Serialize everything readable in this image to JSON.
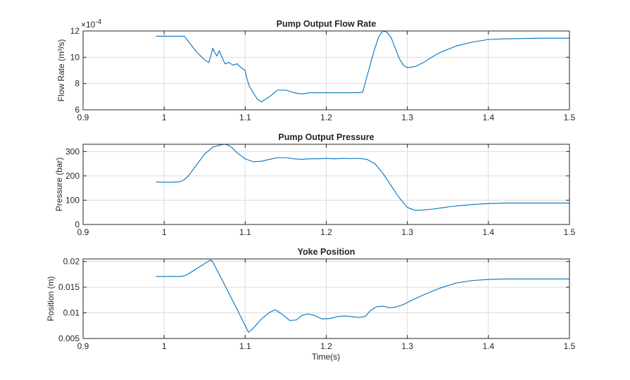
{
  "figure": {
    "xlabel": "Time(s)"
  },
  "chart_data": [
    {
      "type": "line",
      "title": "Pump Output Flow Rate",
      "ylabel": "Flow  Rate  (m³/s)",
      "exponent_base": "×10",
      "exponent_power": "-4",
      "xlim": [
        0.9,
        1.5
      ],
      "ylim": [
        6,
        12
      ],
      "xticks": [
        "0.9",
        "1",
        "1.1",
        "1.2",
        "1.3",
        "1.4",
        "1.5"
      ],
      "xtick_values": [
        0.9,
        1.0,
        1.1,
        1.2,
        1.3,
        1.4,
        1.5
      ],
      "yticks": [
        "6",
        "8",
        "10",
        "12"
      ],
      "ytick_values": [
        6,
        8,
        10,
        12
      ],
      "grid": true,
      "color": "#0072BD",
      "series": [
        {
          "x": [
            0.99,
            1.0,
            1.01,
            1.02,
            1.025,
            1.03,
            1.035,
            1.04,
            1.045,
            1.05,
            1.055,
            1.058,
            1.06,
            1.062,
            1.065,
            1.068,
            1.07,
            1.075,
            1.08,
            1.085,
            1.09,
            1.095,
            1.1,
            1.102,
            1.105,
            1.11,
            1.115,
            1.12,
            1.13,
            1.14,
            1.15,
            1.16,
            1.17,
            1.18,
            1.19,
            1.2,
            1.21,
            1.22,
            1.23,
            1.24,
            1.245,
            1.25,
            1.255,
            1.26,
            1.265,
            1.27,
            1.275,
            1.28,
            1.285,
            1.29,
            1.295,
            1.3,
            1.31,
            1.32,
            1.33,
            1.34,
            1.35,
            1.36,
            1.37,
            1.38,
            1.39,
            1.4,
            1.42,
            1.44,
            1.46,
            1.48,
            1.5
          ],
          "y": [
            11.6,
            11.6,
            11.6,
            11.6,
            11.6,
            11.2,
            10.8,
            10.4,
            10.1,
            9.8,
            9.6,
            10.2,
            10.7,
            10.4,
            10.1,
            10.5,
            10.2,
            9.5,
            9.6,
            9.4,
            9.5,
            9.2,
            9.0,
            8.4,
            7.8,
            7.3,
            6.8,
            6.6,
            7.0,
            7.5,
            7.5,
            7.3,
            7.2,
            7.3,
            7.3,
            7.3,
            7.3,
            7.3,
            7.3,
            7.3,
            7.35,
            8.5,
            9.6,
            10.7,
            11.6,
            12.0,
            11.9,
            11.5,
            10.7,
            9.9,
            9.4,
            9.2,
            9.3,
            9.6,
            10.0,
            10.35,
            10.6,
            10.85,
            11.0,
            11.15,
            11.25,
            11.35,
            11.4,
            11.42,
            11.45,
            11.45,
            11.45
          ]
        }
      ]
    },
    {
      "type": "line",
      "title": "Pump Output Pressure",
      "ylabel": "Pressure (bar)",
      "xlim": [
        0.9,
        1.5
      ],
      "ylim": [
        0,
        330
      ],
      "xticks": [
        "0.9",
        "1",
        "1.1",
        "1.2",
        "1.3",
        "1.4",
        "1.5"
      ],
      "xtick_values": [
        0.9,
        1.0,
        1.1,
        1.2,
        1.3,
        1.4,
        1.5
      ],
      "yticks": [
        "0",
        "100",
        "200",
        "300"
      ],
      "ytick_values": [
        0,
        100,
        200,
        300
      ],
      "grid": true,
      "color": "#0072BD",
      "series": [
        {
          "x": [
            0.99,
            1.0,
            1.01,
            1.02,
            1.025,
            1.03,
            1.04,
            1.05,
            1.06,
            1.07,
            1.075,
            1.08,
            1.085,
            1.09,
            1.1,
            1.11,
            1.12,
            1.13,
            1.14,
            1.15,
            1.16,
            1.17,
            1.18,
            1.19,
            1.2,
            1.21,
            1.22,
            1.23,
            1.24,
            1.25,
            1.26,
            1.27,
            1.28,
            1.29,
            1.3,
            1.31,
            1.32,
            1.33,
            1.34,
            1.35,
            1.36,
            1.37,
            1.38,
            1.39,
            1.4,
            1.42,
            1.44,
            1.46,
            1.48,
            1.5
          ],
          "y": [
            175,
            174,
            174,
            176,
            185,
            200,
            245,
            290,
            318,
            328,
            330,
            325,
            312,
            295,
            270,
            258,
            260,
            268,
            275,
            275,
            270,
            268,
            270,
            270,
            272,
            270,
            272,
            271,
            272,
            268,
            250,
            210,
            160,
            110,
            70,
            58,
            60,
            63,
            67,
            72,
            76,
            79,
            82,
            84,
            86,
            88,
            88,
            88,
            88,
            88
          ]
        }
      ]
    },
    {
      "type": "line",
      "title": "Yoke Position",
      "ylabel": "Position (m)",
      "xlim": [
        0.9,
        1.5
      ],
      "ylim": [
        0.005,
        0.0205
      ],
      "xticks": [
        "0.9",
        "1",
        "1.1",
        "1.2",
        "1.3",
        "1.4",
        "1.5"
      ],
      "xtick_values": [
        0.9,
        1.0,
        1.1,
        1.2,
        1.3,
        1.4,
        1.5
      ],
      "yticks": [
        "0.005",
        "0.01",
        "0.015",
        "0.02"
      ],
      "ytick_values": [
        0.005,
        0.01,
        0.015,
        0.02
      ],
      "grid": true,
      "color": "#0072BD",
      "series": [
        {
          "x": [
            0.99,
            1.0,
            1.01,
            1.02,
            1.025,
            1.03,
            1.04,
            1.05,
            1.055,
            1.058,
            1.06,
            1.07,
            1.08,
            1.09,
            1.1,
            1.104,
            1.11,
            1.12,
            1.13,
            1.137,
            1.145,
            1.155,
            1.163,
            1.17,
            1.178,
            1.185,
            1.195,
            1.205,
            1.215,
            1.222,
            1.23,
            1.24,
            1.248,
            1.255,
            1.262,
            1.27,
            1.278,
            1.285,
            1.295,
            1.305,
            1.32,
            1.34,
            1.36,
            1.38,
            1.4,
            1.42,
            1.44,
            1.46,
            1.48,
            1.5
          ],
          "y": [
            0.0171,
            0.0171,
            0.0171,
            0.0171,
            0.0172,
            0.0176,
            0.0186,
            0.0196,
            0.0201,
            0.0203,
            0.0199,
            0.0169,
            0.0138,
            0.0107,
            0.0075,
            0.0062,
            0.007,
            0.0088,
            0.0101,
            0.0106,
            0.0098,
            0.0085,
            0.0086,
            0.0095,
            0.0098,
            0.0095,
            0.0088,
            0.0089,
            0.0093,
            0.0094,
            0.0093,
            0.0091,
            0.0093,
            0.0105,
            0.0112,
            0.0113,
            0.011,
            0.0111,
            0.0116,
            0.0124,
            0.0135,
            0.0148,
            0.0158,
            0.0163,
            0.0165,
            0.0166,
            0.0166,
            0.0166,
            0.0166,
            0.0166
          ]
        }
      ]
    }
  ]
}
